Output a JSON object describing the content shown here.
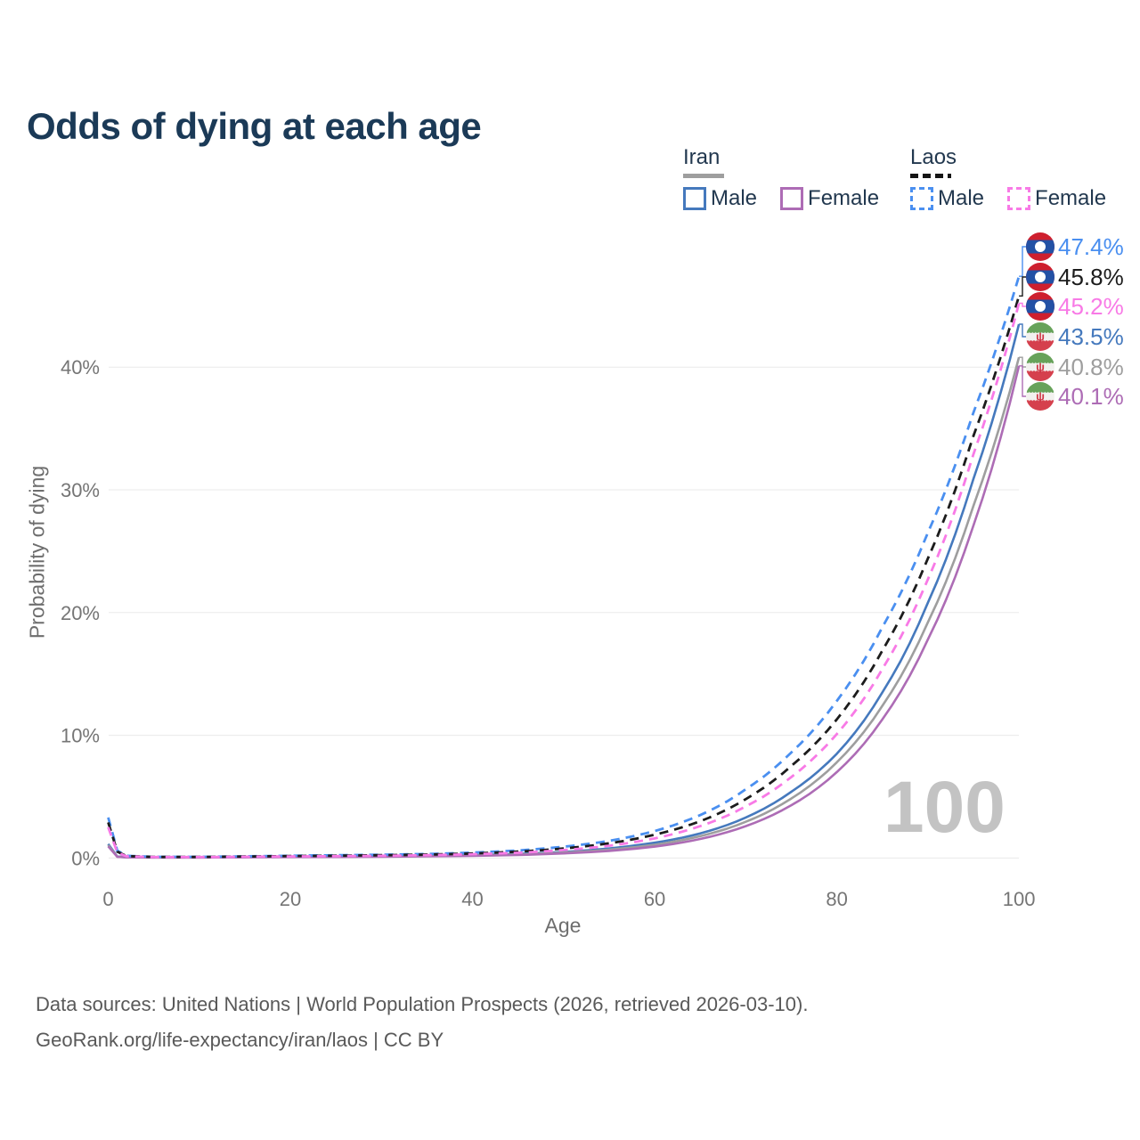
{
  "title": "Odds of dying at each age",
  "legend": {
    "groups": [
      {
        "label": "Iran",
        "style": "solid",
        "items": [
          {
            "label": "Male",
            "series": 3
          },
          {
            "label": "Female",
            "series": 5
          }
        ]
      },
      {
        "label": "Laos",
        "style": "dashed",
        "items": [
          {
            "label": "Male",
            "series": 0
          },
          {
            "label": "Female",
            "series": 2
          }
        ]
      }
    ]
  },
  "watermark": "100",
  "footer": {
    "line1": "Data sources: United Nations | World Population Prospects (2026, retrieved 2026-03-10).",
    "line2": "GeoRank.org/life-expectancy/iran/laos | CC BY"
  },
  "chart_data": {
    "type": "line",
    "title": "Odds of dying at each age",
    "xlabel": "Age",
    "ylabel": "Probability of dying",
    "xlim": [
      0,
      100
    ],
    "ylim": [
      0,
      48
    ],
    "x_ticks": [
      0,
      20,
      40,
      60,
      80,
      100
    ],
    "y_ticks": [
      0,
      10,
      20,
      30,
      40
    ],
    "y_tick_format": "percent",
    "grid": "horizontal",
    "legend_position": "top-right",
    "ages": [
      0,
      1,
      2,
      5,
      10,
      15,
      20,
      25,
      30,
      35,
      40,
      45,
      50,
      55,
      60,
      65,
      70,
      75,
      80,
      85,
      90,
      95,
      100
    ],
    "series": [
      {
        "name": "Laos Male",
        "country": "Laos",
        "sex": "Male",
        "color": "#4a8ff0",
        "line_style": "dashed",
        "flag": "laos-flag-icon",
        "end_label": "47.4%",
        "values": [
          3.3,
          0.6,
          0.18,
          0.1,
          0.1,
          0.14,
          0.19,
          0.23,
          0.27,
          0.33,
          0.44,
          0.62,
          0.92,
          1.4,
          2.2,
          3.5,
          5.6,
          8.6,
          12.8,
          18.8,
          26.5,
          36.3,
          47.4
        ]
      },
      {
        "name": "Laos Overall",
        "country": "Laos",
        "sex": "Both",
        "color": "#1c1c1c",
        "line_style": "dashed",
        "flag": "laos-flag-icon",
        "end_label": "45.8%",
        "values": [
          2.9,
          0.52,
          0.16,
          0.09,
          0.09,
          0.12,
          0.16,
          0.19,
          0.23,
          0.28,
          0.37,
          0.52,
          0.78,
          1.2,
          1.9,
          3.0,
          4.8,
          7.5,
          11.3,
          16.9,
          24.4,
          34.4,
          45.8
        ]
      },
      {
        "name": "Laos Female",
        "country": "Laos",
        "sex": "Female",
        "color": "#f87ae6",
        "line_style": "dashed",
        "flag": "laos-flag-icon",
        "end_label": "45.2%",
        "values": [
          2.5,
          0.45,
          0.14,
          0.08,
          0.08,
          0.1,
          0.13,
          0.15,
          0.18,
          0.23,
          0.31,
          0.43,
          0.65,
          1.0,
          1.6,
          2.6,
          4.2,
          6.6,
          10.1,
          15.4,
          22.7,
          32.9,
          45.2
        ]
      },
      {
        "name": "Iran Male",
        "country": "Iran",
        "sex": "Male",
        "color": "#4579bd",
        "line_style": "solid",
        "flag": "iran-flag-icon",
        "end_label": "43.5%",
        "values": [
          1.15,
          0.12,
          0.07,
          0.05,
          0.05,
          0.08,
          0.11,
          0.13,
          0.15,
          0.18,
          0.24,
          0.34,
          0.5,
          0.78,
          1.25,
          2.0,
          3.3,
          5.4,
          8.5,
          13.5,
          20.8,
          30.9,
          43.5
        ]
      },
      {
        "name": "Iran Overall",
        "country": "Iran",
        "sex": "Both",
        "color": "#9e9e9e",
        "line_style": "solid",
        "flag": "iran-flag-icon",
        "end_label": "40.8%",
        "values": [
          1.05,
          0.11,
          0.06,
          0.045,
          0.045,
          0.07,
          0.09,
          0.11,
          0.13,
          0.16,
          0.21,
          0.29,
          0.44,
          0.68,
          1.08,
          1.78,
          2.95,
          4.85,
          7.8,
          12.4,
          19.2,
          28.7,
          40.8
        ]
      },
      {
        "name": "Iran Female",
        "country": "Iran",
        "sex": "Female",
        "color": "#ad6cb5",
        "line_style": "solid",
        "flag": "iran-flag-icon",
        "end_label": "40.1%",
        "values": [
          0.95,
          0.1,
          0.05,
          0.04,
          0.04,
          0.06,
          0.08,
          0.09,
          0.11,
          0.14,
          0.18,
          0.25,
          0.38,
          0.58,
          0.93,
          1.55,
          2.6,
          4.3,
          7.0,
          11.3,
          17.8,
          27.1,
          40.1
        ]
      }
    ]
  }
}
